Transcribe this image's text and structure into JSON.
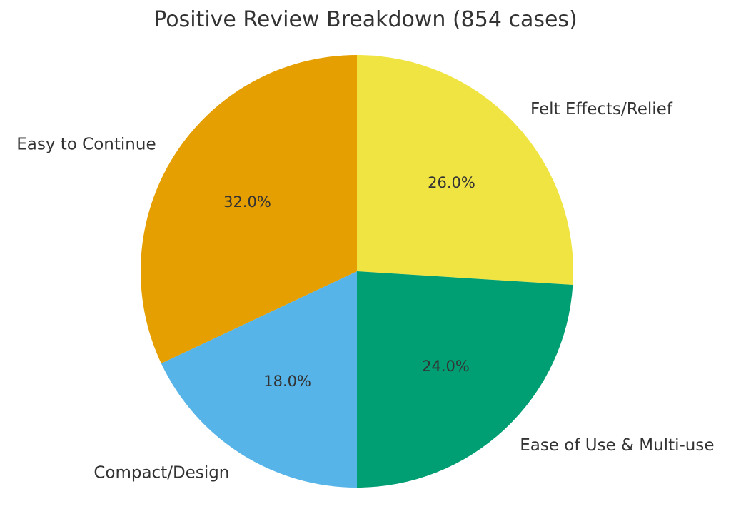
{
  "title": "Positive Review Breakdown (854 cases)",
  "total_cases": "854",
  "colors": {
    "background": "#ffffff",
    "text": "#333333"
  },
  "chart_data": {
    "type": "pie",
    "title": "Positive Review Breakdown (854 cases)",
    "start_angle_deg": 90,
    "direction": "clockwise",
    "label_distance": 1.1,
    "pct_distance": 0.6,
    "legend": "none",
    "slices": [
      {
        "label": "Felt Effects/Relief",
        "value": 26.0,
        "pct_label": "26.0%",
        "color": "#F0E442"
      },
      {
        "label": "Ease of Use & Multi-use",
        "value": 24.0,
        "pct_label": "24.0%",
        "color": "#009E73"
      },
      {
        "label": "Compact/Design",
        "value": 18.0,
        "pct_label": "18.0%",
        "color": "#56B4E9"
      },
      {
        "label": "Easy to Continue",
        "value": 32.0,
        "pct_label": "32.0%",
        "color": "#E69F00"
      }
    ]
  }
}
